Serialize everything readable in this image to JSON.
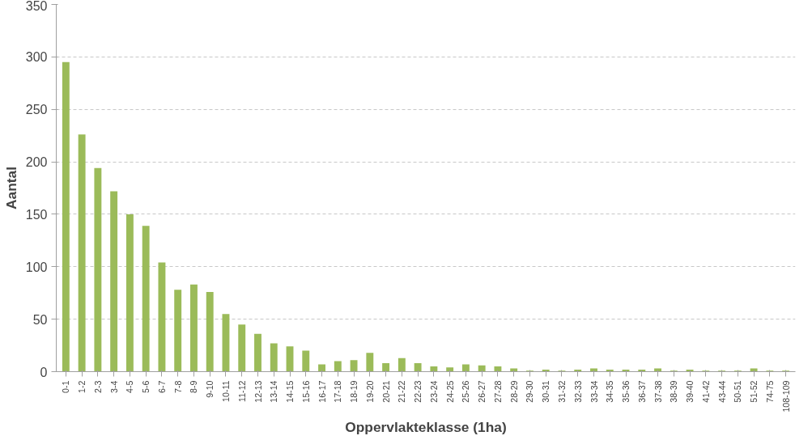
{
  "chart_data": {
    "type": "bar",
    "xlabel": "Oppervlakteklasse (1ha)",
    "ylabel": "Aantal",
    "categories": [
      "0-1",
      "1-2",
      "2-3",
      "3-4",
      "4-5",
      "5-6",
      "6-7",
      "7-8",
      "8-9",
      "9-10",
      "10-11",
      "11-12",
      "12-13",
      "13-14",
      "14-15",
      "15-16",
      "16-17",
      "17-18",
      "18-19",
      "19-20",
      "20-21",
      "21-22",
      "22-23",
      "23-24",
      "24-25",
      "25-26",
      "26-27",
      "27-28",
      "28-29",
      "29-30",
      "30-31",
      "31-32",
      "32-33",
      "33-34",
      "34-35",
      "35-36",
      "36-37",
      "37-38",
      "38-39",
      "39-40",
      "41-42",
      "43-44",
      "50-51",
      "51-52",
      "74-75",
      "108-109"
    ],
    "values": [
      295,
      226,
      194,
      172,
      150,
      139,
      104,
      78,
      83,
      76,
      55,
      45,
      36,
      27,
      24,
      20,
      7,
      10,
      11,
      18,
      8,
      13,
      8,
      5,
      4,
      7,
      6,
      5,
      3,
      1,
      2,
      1,
      2,
      3,
      2,
      2,
      2,
      3,
      1,
      2,
      1,
      1,
      1,
      3,
      1,
      1
    ],
    "color": "#9bbb59",
    "ylim": [
      0,
      350
    ],
    "yticks": [
      0,
      50,
      100,
      150,
      200,
      250,
      300,
      350
    ],
    "grid": "y"
  }
}
